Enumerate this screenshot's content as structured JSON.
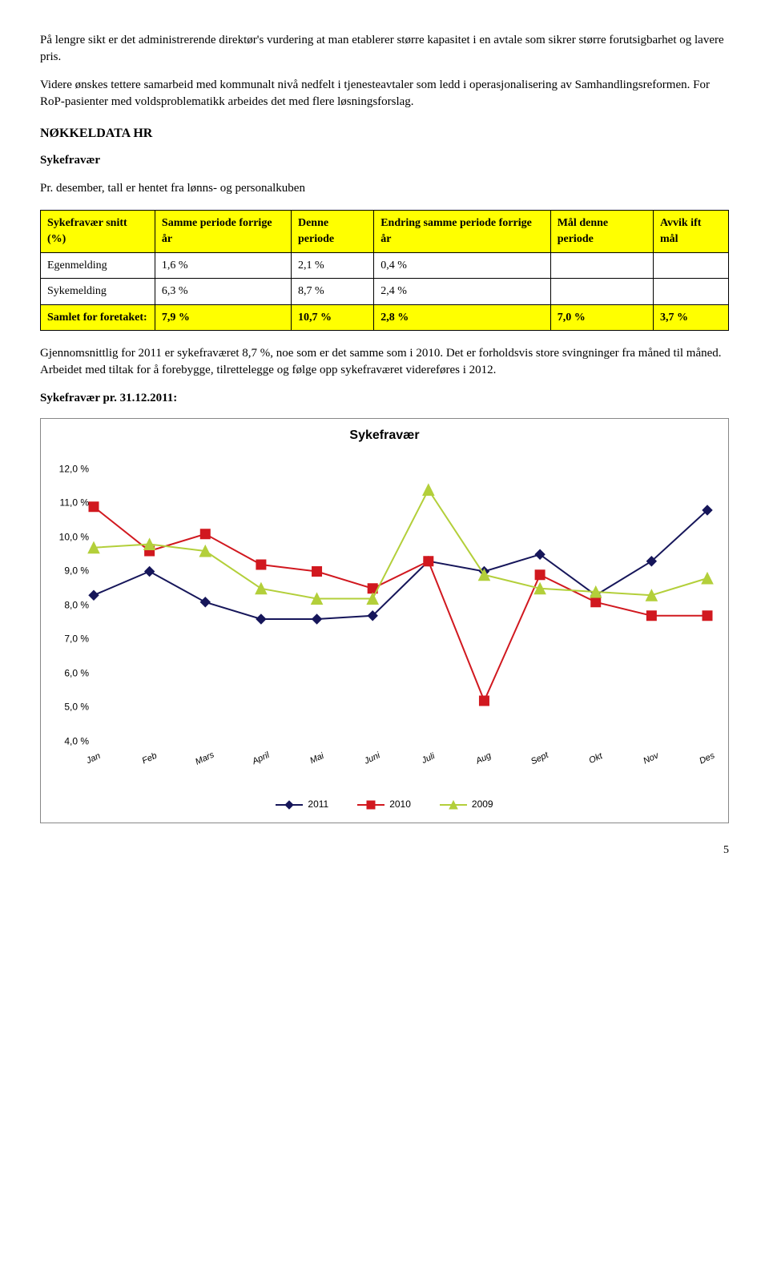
{
  "para1": "På lengre sikt er det administrerende direktør's vurdering at man etablerer større kapasitet i en avtale som sikrer større forutsigbarhet og lavere pris.",
  "para2": "Videre ønskes tettere samarbeid med kommunalt nivå nedfelt i tjenesteavtaler som ledd i operasjonalisering av Samhandlingsreformen. For RoP-pasienter med voldsproblematikk arbeides det med flere løsningsforslag.",
  "heading_hr": "NØKKELDATA HR",
  "heading_syke": "Sykefravær",
  "para3": "Pr. desember, tall er hentet fra lønns- og personalkuben",
  "table": {
    "headers": [
      "Sykefravær snitt (%)",
      "Samme periode forrige år",
      "Denne periode",
      "Endring samme periode forrige år",
      "Mål denne periode",
      "Avvik ift mål"
    ],
    "rows": [
      [
        "Egenmelding",
        "1,6 %",
        "2,1 %",
        "0,4 %",
        "",
        ""
      ],
      [
        "Sykemelding",
        "6,3 %",
        "8,7 %",
        "2,4 %",
        "",
        ""
      ]
    ],
    "sum_row": [
      "Samlet for foretaket:",
      "7,9 %",
      "10,7 %",
      "2,8 %",
      "7,0 %",
      "3,7 %"
    ]
  },
  "para4": "Gjennomsnittlig for 2011 er sykefraværet 8,7 %, noe som er det samme som i 2010. Det er forholdsvis store svingninger fra måned til måned. Arbeidet med tiltak for å forebygge, tilrettelegge og følge opp sykefraværet videreføres i 2012.",
  "heading_chart": "Sykefravær pr. 31.12.2011:",
  "chart": {
    "type": "line",
    "title": "Sykefravær",
    "title_fontsize": 16,
    "label_fontsize": 12,
    "background_color": "#ffffff",
    "border_color": "#888888",
    "ylim": [
      4.0,
      12.0
    ],
    "ytick_step": 1.0,
    "yticks": [
      "4,0 %",
      "5,0 %",
      "6,0 %",
      "7,0 %",
      "8,0 %",
      "9,0 %",
      "10,0 %",
      "11,0 %",
      "12,0 %"
    ],
    "categories": [
      "Jan",
      "Feb",
      "Mars",
      "April",
      "Mai",
      "Juni",
      "Juli",
      "Aug",
      "Sept",
      "Okt",
      "Nov",
      "Des"
    ],
    "series": [
      {
        "name": "2011",
        "color": "#16165a",
        "marker": "diamond",
        "marker_size": 6,
        "line_width": 2,
        "values": [
          8.3,
          9.0,
          8.1,
          7.6,
          7.6,
          7.7,
          9.3,
          9.0,
          9.5,
          8.3,
          9.3,
          10.8
        ]
      },
      {
        "name": "2010",
        "color": "#d1181f",
        "marker": "square",
        "marker_size": 6,
        "line_width": 2,
        "values": [
          10.9,
          9.6,
          10.1,
          9.2,
          9.0,
          8.5,
          9.3,
          5.2,
          8.9,
          8.1,
          7.7,
          7.7
        ]
      },
      {
        "name": "2009",
        "color": "#b3cf3a",
        "marker": "triangle",
        "marker_size": 7,
        "line_width": 2,
        "values": [
          9.7,
          9.8,
          9.6,
          8.5,
          8.2,
          8.2,
          11.4,
          8.9,
          8.5,
          8.4,
          8.3,
          8.8
        ]
      }
    ],
    "legend_position": "bottom"
  },
  "page_number": "5"
}
